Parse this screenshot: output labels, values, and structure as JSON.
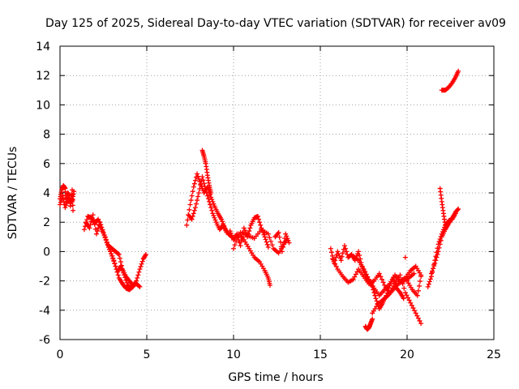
{
  "chart_data": {
    "type": "scatter",
    "title": "Day 125 of 2025, Sidereal Day-to-day VTEC variation (SDTVAR) for receiver av09",
    "xlabel": "GPS time / hours",
    "ylabel": "SDTVAR / TECUs",
    "xlim": [
      0,
      25
    ],
    "ylim": [
      -6,
      14
    ],
    "xticks": [
      0,
      5,
      10,
      15,
      20,
      25
    ],
    "yticks": [
      -6,
      -4,
      -2,
      0,
      2,
      4,
      6,
      8,
      10,
      12,
      14
    ],
    "grid": true,
    "marker": "plus",
    "color": "#ff0000",
    "series": [
      {
        "name": "SDTVAR",
        "segments": [
          {
            "x": [
              0.0,
              0.1,
              0.2,
              0.3,
              0.35,
              0.45,
              0.55,
              0.6,
              0.7,
              0.75
            ],
            "y": [
              3.6,
              4.2,
              4.5,
              4.3,
              3.4,
              4.0,
              3.8,
              3.1,
              4.2,
              2.8
            ]
          },
          {
            "x": [
              0.0,
              0.15,
              0.3,
              0.5,
              0.7,
              0.8
            ],
            "y": [
              3.2,
              3.8,
              3.0,
              3.6,
              3.4,
              4.1
            ]
          },
          {
            "x": [
              1.4,
              1.6,
              1.8,
              2.0,
              2.2,
              2.4,
              2.6,
              2.8,
              3.0,
              3.2,
              3.4,
              3.6,
              3.8,
              4.0,
              4.2,
              4.4,
              4.6,
              4.8,
              4.95
            ],
            "y": [
              1.5,
              2.4,
              2.3,
              1.9,
              2.2,
              1.5,
              1.0,
              0.3,
              -0.3,
              -1.0,
              -1.8,
              -2.2,
              -2.5,
              -2.6,
              -2.4,
              -2.0,
              -1.2,
              -0.5,
              -0.2
            ]
          },
          {
            "x": [
              1.5,
              1.7,
              1.9,
              2.1,
              2.3,
              2.5,
              2.7,
              2.9,
              3.1,
              3.3,
              3.5,
              3.7,
              3.9,
              4.1
            ],
            "y": [
              2.0,
              1.6,
              2.5,
              1.2,
              2.0,
              1.3,
              0.6,
              0.0,
              -0.6,
              -1.4,
              -1.0,
              -1.6,
              -2.3,
              -2.5
            ]
          },
          {
            "x": [
              2.8,
              3.0,
              3.2,
              3.4,
              3.6,
              3.8,
              4.0,
              4.2,
              4.4,
              4.6
            ],
            "y": [
              0.4,
              0.2,
              0.0,
              -0.2,
              -1.2,
              -1.7,
              -2.0,
              -2.3,
              -2.2,
              -2.4
            ]
          },
          {
            "x": [
              7.3,
              7.5,
              7.7,
              7.9,
              8.1,
              8.3,
              8.5,
              8.7,
              8.9,
              9.1,
              9.3,
              9.5,
              9.7,
              9.9
            ],
            "y": [
              1.8,
              3.2,
              4.4,
              5.3,
              4.6,
              4.0,
              4.4,
              3.7,
              3.1,
              2.6,
              2.2,
              1.6,
              1.2,
              1.0
            ]
          },
          {
            "x": [
              7.4,
              7.6,
              7.8,
              8.0,
              8.2,
              8.4,
              8.6,
              8.8,
              9.0,
              9.2,
              9.4,
              9.6
            ],
            "y": [
              2.5,
              2.2,
              3.0,
              4.0,
              5.1,
              4.2,
              3.4,
              2.6,
              2.0,
              1.5,
              1.8,
              1.3
            ]
          },
          {
            "x": [
              8.2,
              8.3,
              8.4,
              8.5,
              8.6,
              8.7
            ],
            "y": [
              6.9,
              6.5,
              6.0,
              5.2,
              4.5,
              4.0
            ]
          },
          {
            "x": [
              9.8,
              10.0,
              10.2,
              10.4,
              10.6,
              10.8,
              11.0,
              11.2,
              11.4,
              11.6,
              11.8,
              12.0
            ],
            "y": [
              1.4,
              0.8,
              1.2,
              0.4,
              1.6,
              1.0,
              1.8,
              2.3,
              2.4,
              1.6,
              1.0,
              0.3
            ]
          },
          {
            "x": [
              10.0,
              10.3,
              10.6,
              10.9,
              11.2,
              11.5,
              11.8,
              12.0,
              12.1
            ],
            "y": [
              0.2,
              1.2,
              0.8,
              0.2,
              -0.4,
              -0.7,
              -1.3,
              -1.8,
              -2.3
            ]
          },
          {
            "x": [
              10.4,
              10.8,
              11.2,
              11.6,
              12.0,
              12.3,
              12.6,
              12.9,
              13.1
            ],
            "y": [
              1.3,
              1.1,
              0.9,
              1.5,
              1.2,
              0.2,
              -0.1,
              0.5,
              0.9
            ]
          },
          {
            "x": [
              12.4,
              12.6,
              12.8,
              13.0,
              13.2
            ],
            "y": [
              1.0,
              1.3,
              0.0,
              1.2,
              0.6
            ]
          },
          {
            "x": [
              15.6,
              15.8,
              16.0,
              16.2,
              16.4,
              16.6,
              16.8,
              17.0,
              17.2,
              17.4,
              17.6,
              17.8,
              18.0,
              18.2,
              18.4,
              18.6,
              18.8,
              19.0,
              19.2,
              19.4,
              19.6,
              19.8
            ],
            "y": [
              0.2,
              -0.8,
              0.0,
              -0.6,
              0.4,
              -0.4,
              -0.2,
              -0.6,
              0.0,
              -1.0,
              -1.6,
              -2.0,
              -2.4,
              -3.2,
              -3.9,
              -3.5,
              -3.0,
              -2.3,
              -1.8,
              -2.5,
              -2.8,
              -3.2
            ]
          },
          {
            "x": [
              15.7,
              16.0,
              16.3,
              16.6,
              16.9,
              17.2,
              17.5,
              17.8,
              18.1,
              18.4,
              18.7,
              19.0,
              19.3,
              19.6,
              19.9,
              20.2,
              20.5,
              20.8
            ],
            "y": [
              -0.5,
              -1.2,
              -1.7,
              -2.1,
              -1.9,
              -1.2,
              -1.7,
              -2.2,
              -2.0,
              -1.5,
              -2.3,
              -2.8,
              -2.2,
              -1.6,
              -2.8,
              -3.5,
              -4.2,
              -4.9
            ]
          },
          {
            "x": [
              16.9,
              17.2,
              17.5,
              17.8,
              18.1,
              18.4,
              18.7,
              19.0,
              19.3,
              19.6,
              19.9,
              20.2,
              20.5,
              20.8
            ],
            "y": [
              -0.3,
              -0.6,
              -1.2,
              -1.9,
              -2.5,
              -3.0,
              -2.6,
              -2.2,
              -1.6,
              -2.0,
              -1.8,
              -1.3,
              -1.0,
              -1.6
            ]
          },
          {
            "x": [
              17.6,
              17.7,
              17.8,
              17.9,
              18.0
            ],
            "y": [
              -5.1,
              -5.3,
              -5.2,
              -4.9,
              -4.6
            ]
          },
          {
            "x": [
              18.0,
              18.3,
              18.6,
              18.9,
              19.2,
              19.5,
              19.8,
              20.1,
              20.4
            ],
            "y": [
              -4.2,
              -3.6,
              -3.3,
              -3.0,
              -2.6,
              -2.2,
              -2.0,
              -1.8,
              -1.5
            ]
          },
          {
            "x": [
              19.9
            ],
            "y": [
              -0.4
            ]
          },
          {
            "x": [
              20.0,
              20.3,
              20.6,
              20.8
            ],
            "y": [
              -2.0,
              -2.6,
              -3.0,
              -1.7
            ]
          },
          {
            "x": [
              21.2,
              21.4,
              21.6,
              21.8,
              22.0,
              22.2,
              22.4,
              22.6,
              22.8
            ],
            "y": [
              -2.4,
              -1.7,
              -0.6,
              0.5,
              1.2,
              1.8,
              2.1,
              2.2,
              2.6
            ]
          },
          {
            "x": [
              21.4,
              21.6,
              21.8,
              22.0,
              22.2,
              22.4,
              22.6,
              22.8,
              22.95
            ],
            "y": [
              -1.5,
              -0.8,
              0.0,
              1.0,
              1.5,
              1.9,
              2.3,
              2.7,
              2.9
            ]
          },
          {
            "x": [
              21.9,
              22.0,
              22.1,
              22.2
            ],
            "y": [
              4.3,
              3.4,
              2.6,
              1.8
            ]
          },
          {
            "x": [
              22.0,
              22.2,
              22.4,
              22.6,
              22.8,
              22.95
            ],
            "y": [
              11.0,
              11.0,
              11.2,
              11.5,
              11.9,
              12.3
            ]
          }
        ]
      }
    ]
  }
}
